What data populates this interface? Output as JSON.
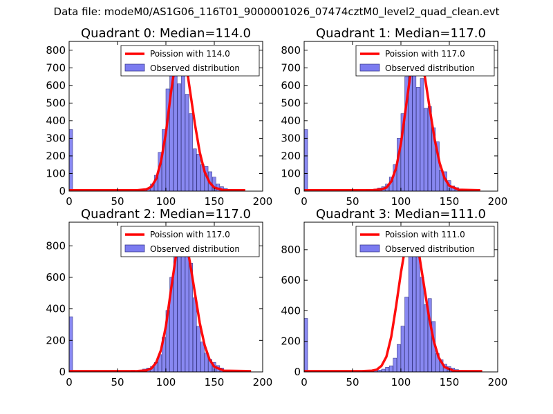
{
  "suptitle": "Data file: modeM0/AS1G06_116T01_9000001026_07474cztM0_level2_quad_clean.evt",
  "colors": {
    "bar_fill": "#7b7bf0",
    "bar_edge": "#3a3a8c",
    "fit_line": "#ff0000",
    "axis": "#000000"
  },
  "chart_data": [
    {
      "type": "bar",
      "title": "Quadrant 0: Median=114.0",
      "xlim": [
        0,
        200
      ],
      "ylim": [
        0,
        850
      ],
      "xticks": [
        0,
        50,
        100,
        150,
        200
      ],
      "yticks": [
        0,
        100,
        200,
        300,
        400,
        500,
        600,
        700,
        800
      ],
      "legend": {
        "position": "top-right",
        "line_label": "Poission with 114.0",
        "bar_label": "Observed distribution"
      },
      "median": 114,
      "bar_width": 3.6,
      "bar_lefts": [
        0,
        68,
        72,
        76,
        80,
        84,
        88,
        92,
        96,
        100,
        104,
        108,
        112,
        116,
        120,
        124,
        128,
        132,
        136,
        140,
        144,
        148,
        152,
        156,
        160,
        164,
        168,
        172,
        176
      ],
      "bar_values": [
        350,
        5,
        8,
        12,
        18,
        40,
        90,
        220,
        350,
        580,
        700,
        800,
        610,
        720,
        550,
        440,
        240,
        210,
        150,
        140,
        110,
        80,
        40,
        25,
        15,
        10,
        8,
        5,
        3
      ],
      "fit_x": [
        0,
        60,
        70,
        80,
        85,
        90,
        95,
        100,
        105,
        110,
        114,
        118,
        122,
        126,
        130,
        135,
        140,
        145,
        150,
        160,
        182
      ],
      "fit_y": [
        5,
        5,
        5,
        10,
        25,
        70,
        170,
        330,
        550,
        740,
        810,
        780,
        680,
        530,
        380,
        220,
        110,
        50,
        20,
        5,
        5
      ]
    },
    {
      "type": "bar",
      "title": "Quadrant 1: Median=117.0",
      "xlim": [
        0,
        200
      ],
      "ylim": [
        0,
        850
      ],
      "xticks": [
        0,
        50,
        100,
        150,
        200
      ],
      "yticks": [
        0,
        100,
        200,
        300,
        400,
        500,
        600,
        700,
        800
      ],
      "legend": {
        "position": "top-right",
        "line_label": "Poission with 117.0",
        "bar_label": "Observed distribution"
      },
      "median": 117,
      "bar_width": 3.6,
      "bar_lefts": [
        0,
        64,
        72,
        76,
        80,
        84,
        88,
        92,
        96,
        100,
        104,
        108,
        112,
        116,
        120,
        124,
        128,
        132,
        136,
        140,
        144,
        148,
        152,
        156,
        160,
        164,
        168,
        172,
        176
      ],
      "bar_values": [
        350,
        10,
        12,
        18,
        25,
        40,
        80,
        150,
        300,
        440,
        650,
        800,
        760,
        590,
        640,
        470,
        480,
        360,
        280,
        120,
        110,
        60,
        30,
        20,
        12,
        8,
        5,
        3,
        2
      ],
      "fit_x": [
        0,
        60,
        70,
        80,
        85,
        90,
        95,
        100,
        105,
        110,
        114,
        117,
        121,
        125,
        130,
        135,
        140,
        145,
        150,
        160,
        182
      ],
      "fit_y": [
        5,
        5,
        5,
        10,
        20,
        55,
        130,
        270,
        470,
        670,
        780,
        810,
        760,
        640,
        460,
        290,
        160,
        75,
        30,
        8,
        5
      ]
    },
    {
      "type": "bar",
      "title": "Quadrant 2: Median=117.0",
      "xlim": [
        0,
        200
      ],
      "ylim": [
        0,
        950
      ],
      "xticks": [
        0,
        50,
        100,
        150,
        200
      ],
      "yticks": [
        0,
        200,
        400,
        600,
        800
      ],
      "legend": {
        "position": "top-right",
        "line_label": "Poission with 117.0",
        "bar_label": "Observed distribution"
      },
      "median": 117,
      "bar_width": 3.6,
      "bar_lefts": [
        0,
        64,
        72,
        76,
        80,
        84,
        88,
        92,
        96,
        100,
        104,
        108,
        112,
        116,
        120,
        124,
        128,
        132,
        136,
        140,
        144,
        148,
        152,
        156,
        160,
        164,
        168,
        172,
        176
      ],
      "bar_values": [
        350,
        10,
        12,
        18,
        25,
        35,
        60,
        110,
        220,
        390,
        600,
        830,
        760,
        870,
        760,
        690,
        470,
        290,
        190,
        120,
        80,
        60,
        40,
        25,
        12,
        8,
        5,
        3,
        2
      ],
      "fit_x": [
        0,
        60,
        70,
        80,
        85,
        90,
        95,
        100,
        105,
        110,
        114,
        117,
        121,
        125,
        130,
        135,
        140,
        145,
        150,
        160,
        188
      ],
      "fit_y": [
        5,
        5,
        5,
        10,
        22,
        60,
        140,
        290,
        510,
        720,
        850,
        880,
        820,
        690,
        500,
        310,
        170,
        80,
        33,
        8,
        5
      ]
    },
    {
      "type": "bar",
      "title": "Quadrant 3: Median=111.0",
      "xlim": [
        0,
        200
      ],
      "ylim": [
        0,
        980
      ],
      "xticks": [
        0,
        50,
        100,
        150,
        200
      ],
      "yticks": [
        0,
        200,
        400,
        600,
        800
      ],
      "legend": {
        "position": "top-right",
        "line_label": "Poission with 111.0",
        "bar_label": "Observed distribution"
      },
      "median": 111,
      "bar_width": 3.6,
      "bar_lefts": [
        0,
        60,
        72,
        76,
        80,
        84,
        88,
        92,
        96,
        100,
        104,
        108,
        112,
        116,
        120,
        124,
        128,
        132,
        136,
        140,
        144,
        148,
        152,
        156,
        160,
        164,
        168,
        172,
        176
      ],
      "bar_values": [
        350,
        5,
        10,
        12,
        18,
        30,
        40,
        90,
        180,
        300,
        490,
        830,
        760,
        880,
        620,
        440,
        480,
        330,
        120,
        80,
        50,
        35,
        25,
        15,
        10,
        6,
        4,
        3,
        2
      ],
      "fit_x": [
        0,
        60,
        70,
        75,
        80,
        85,
        90,
        95,
        100,
        104,
        108,
        111,
        115,
        119,
        124,
        129,
        134,
        139,
        145,
        155,
        184
      ],
      "fit_y": [
        5,
        5,
        8,
        15,
        40,
        100,
        230,
        430,
        650,
        800,
        890,
        920,
        880,
        760,
        560,
        360,
        200,
        95,
        32,
        6,
        5
      ]
    }
  ]
}
